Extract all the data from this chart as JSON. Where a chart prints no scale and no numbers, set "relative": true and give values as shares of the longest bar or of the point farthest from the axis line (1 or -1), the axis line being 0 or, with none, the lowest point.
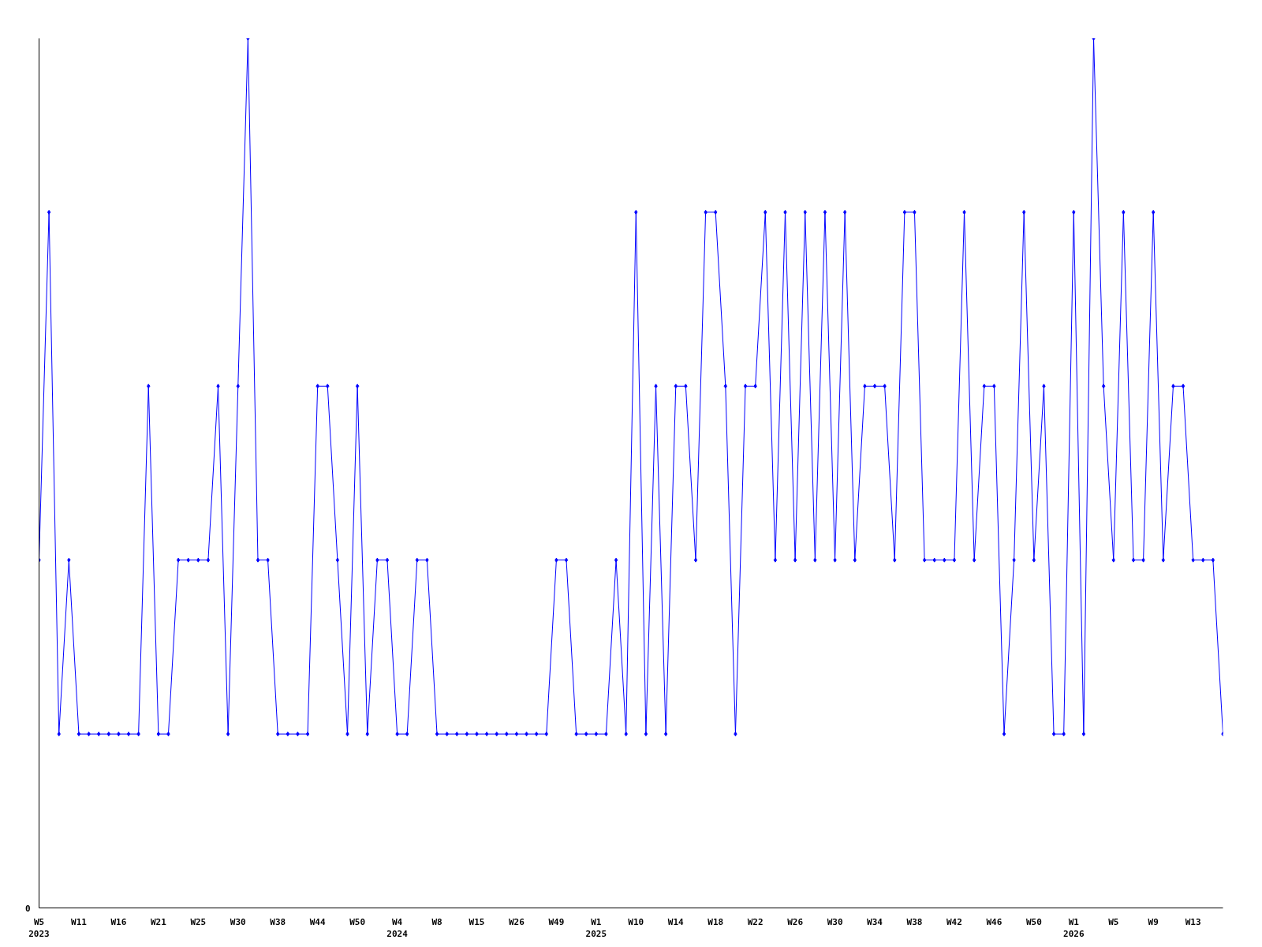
{
  "chart_data": {
    "type": "line",
    "relative": true,
    "annotations": [
      "0"
    ],
    "marker": "diamond",
    "line_style": "solid",
    "categories": [
      "W5\n2023",
      null,
      null,
      null,
      "W11",
      null,
      null,
      null,
      "W16",
      null,
      null,
      null,
      "W21",
      null,
      null,
      null,
      "W25",
      null,
      null,
      null,
      "W30",
      null,
      null,
      null,
      "W38",
      null,
      null,
      null,
      "W44",
      null,
      null,
      null,
      "W50",
      null,
      null,
      null,
      "W4\n2024",
      null,
      null,
      null,
      "W8",
      null,
      null,
      null,
      "W15",
      null,
      null,
      null,
      "W26",
      null,
      null,
      null,
      "W49",
      null,
      null,
      null,
      "W1\n2025",
      null,
      null,
      null,
      "W10",
      null,
      null,
      null,
      "W14",
      null,
      null,
      null,
      "W18",
      null,
      null,
      null,
      "W22",
      null,
      null,
      null,
      "W26",
      null,
      null,
      null,
      "W30",
      null,
      null,
      null,
      "W34",
      null,
      null,
      null,
      "W38",
      null,
      null,
      null,
      "W42",
      null,
      null,
      null,
      "W46",
      null,
      null,
      null,
      "W50",
      null,
      null,
      null,
      "W1\n2026",
      null,
      null,
      null,
      "W5",
      null,
      null,
      null,
      "W9",
      null,
      null,
      null,
      "W13",
      null,
      null,
      null
    ],
    "series": [
      {
        "color": "#0000ff",
        "values": [
          0.4,
          0.8,
          0.2,
          0.4,
          0.2,
          0.2,
          0.2,
          0.2,
          0.2,
          0.2,
          0.2,
          0.6,
          0.2,
          0.2,
          0.4,
          0.4,
          0.4,
          0.4,
          0.6,
          0.2,
          0.6,
          1.0,
          0.4,
          0.4,
          0.2,
          0.2,
          0.2,
          0.2,
          0.6,
          0.6,
          0.4,
          0.2,
          0.6,
          0.2,
          0.4,
          0.4,
          0.2,
          0.2,
          0.4,
          0.4,
          0.2,
          0.2,
          0.2,
          0.2,
          0.2,
          0.2,
          0.2,
          0.2,
          0.2,
          0.2,
          0.2,
          0.2,
          0.4,
          0.4,
          0.2,
          0.2,
          0.2,
          0.2,
          0.4,
          0.2,
          0.8,
          0.2,
          0.6,
          0.2,
          0.6,
          0.6,
          0.4,
          0.8,
          0.8,
          0.6,
          0.2,
          0.6,
          0.6,
          0.8,
          0.4,
          0.8,
          0.4,
          0.8,
          0.4,
          0.8,
          0.4,
          0.8,
          0.4,
          0.6,
          0.6,
          0.6,
          0.4,
          0.8,
          0.8,
          0.4,
          0.4,
          0.4,
          0.4,
          0.8,
          0.4,
          0.6,
          0.6,
          0.2,
          0.4,
          0.8,
          0.4,
          0.6,
          0.2,
          0.2,
          0.8,
          0.2,
          1.0,
          0.6,
          0.4,
          0.8,
          0.4,
          0.4,
          0.8,
          0.4,
          0.6,
          0.6,
          0.4,
          0.4,
          0.4,
          0.2
        ]
      }
    ]
  }
}
